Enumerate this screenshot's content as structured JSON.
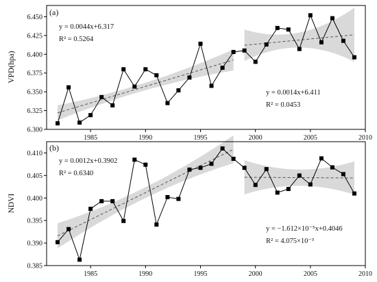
{
  "chart_data": [
    {
      "type": "line",
      "panel_label": "(a)",
      "ylabel": "VPD(hpa)",
      "xlabel": "",
      "xlim": [
        1981,
        2010
      ],
      "ylim": [
        6.3,
        6.465
      ],
      "x_ticks": [
        "1985",
        "1990",
        "1995",
        "2000",
        "2005",
        "2010"
      ],
      "y_ticks": [
        "6.300",
        "6.325",
        "6.350",
        "6.375",
        "6.400",
        "6.425",
        "6.450"
      ],
      "y_tick_values": [
        6.3,
        6.325,
        6.35,
        6.375,
        6.4,
        6.425,
        6.45
      ],
      "x_tick_values": [
        1985,
        1990,
        1995,
        2000,
        2005,
        2010
      ],
      "series": [
        {
          "x": [
            1982,
            1983,
            1984,
            1985,
            1986,
            1987,
            1988,
            1989,
            1990,
            1991,
            1992,
            1993,
            1994,
            1995,
            1996,
            1997,
            1998,
            1999,
            2000,
            2001,
            2002,
            2003,
            2004,
            2005,
            2006,
            2007,
            2008,
            2009
          ],
          "values": [
            6.308,
            6.356,
            6.309,
            6.319,
            6.343,
            6.332,
            6.38,
            6.357,
            6.38,
            6.372,
            6.335,
            6.352,
            6.369,
            6.414,
            6.358,
            6.382,
            6.403,
            6.405,
            6.39,
            6.413,
            6.435,
            6.433,
            6.407,
            6.452,
            6.416,
            6.448,
            6.418,
            6.396
          ]
        }
      ],
      "trend_segments": [
        {
          "x0": 1982,
          "x1": 1998,
          "slope": 0.0044,
          "ref_year": 1982,
          "y_at_ref": 6.322,
          "band": [
            0.01,
            0.005,
            0.014
          ]
        },
        {
          "x0": 1999,
          "x1": 2009,
          "slope": 0.0014,
          "ref_year": 1999,
          "y_at_ref": 6.412,
          "band": [
            0.021,
            0.01,
            0.036
          ]
        }
      ],
      "annotations": [
        {
          "line1": "y = 0.0044x+6.317",
          "line2": "R² = 0.5264",
          "pos": "top-left"
        },
        {
          "line1": "y = 0.0014x+6.411",
          "line2": "R² = 0.0453",
          "pos": "lower-right"
        }
      ],
      "grid": false,
      "legend": "none"
    },
    {
      "type": "line",
      "panel_label": "(b)",
      "ylabel": "NDVI",
      "xlabel": "",
      "xlim": [
        1981,
        2010
      ],
      "ylim": [
        0.385,
        0.4125
      ],
      "x_ticks": [
        "1985",
        "1990",
        "1995",
        "2000",
        "2005",
        "2010"
      ],
      "y_ticks": [
        "0.385",
        "0.390",
        "0.395",
        "0.400",
        "0.405",
        "0.410"
      ],
      "y_tick_values": [
        0.385,
        0.39,
        0.395,
        0.4,
        0.405,
        0.41
      ],
      "x_tick_values": [
        1985,
        1990,
        1995,
        2000,
        2005,
        2010
      ],
      "series": [
        {
          "x": [
            1982,
            1983,
            1984,
            1985,
            1986,
            1987,
            1988,
            1989,
            1990,
            1991,
            1992,
            1993,
            1994,
            1995,
            1996,
            1997,
            1998,
            1999,
            2000,
            2001,
            2002,
            2003,
            2004,
            2005,
            2006,
            2007,
            2008,
            2009
          ],
          "values": [
            0.3902,
            0.3931,
            0.3863,
            0.3976,
            0.3993,
            0.3993,
            0.3949,
            0.4085,
            0.4074,
            0.3941,
            0.4002,
            0.3998,
            0.4063,
            0.4067,
            0.4076,
            0.411,
            0.4087,
            0.4067,
            0.4029,
            0.4064,
            0.4012,
            0.402,
            0.405,
            0.403,
            0.4088,
            0.4068,
            0.4053,
            0.401
          ]
        }
      ],
      "trend_segments": [
        {
          "x0": 1982,
          "x1": 1998,
          "slope": 0.0012,
          "ref_year": 1982,
          "y_at_ref": 0.3916,
          "band": [
            0.0028,
            0.0012,
            0.0031
          ]
        },
        {
          "x0": 1999,
          "x1": 2009,
          "slope": -1.612e-05,
          "ref_year": 1999,
          "y_at_ref": 0.4046,
          "band": [
            0.0038,
            0.0018,
            0.0037
          ]
        }
      ],
      "annotations": [
        {
          "line1": "y = 0.0012x+0.3902",
          "line2": "R² = 0.6340",
          "pos": "top-left"
        },
        {
          "line1": "y = −1.612×10⁻⁵x+0.4046",
          "line2": "R² = 4.075×10⁻³",
          "pos": "lower-right"
        }
      ],
      "grid": false,
      "legend": "none"
    }
  ],
  "colors": {
    "line": "#000000",
    "trend": "#555555",
    "band": "#d9d9d9"
  }
}
